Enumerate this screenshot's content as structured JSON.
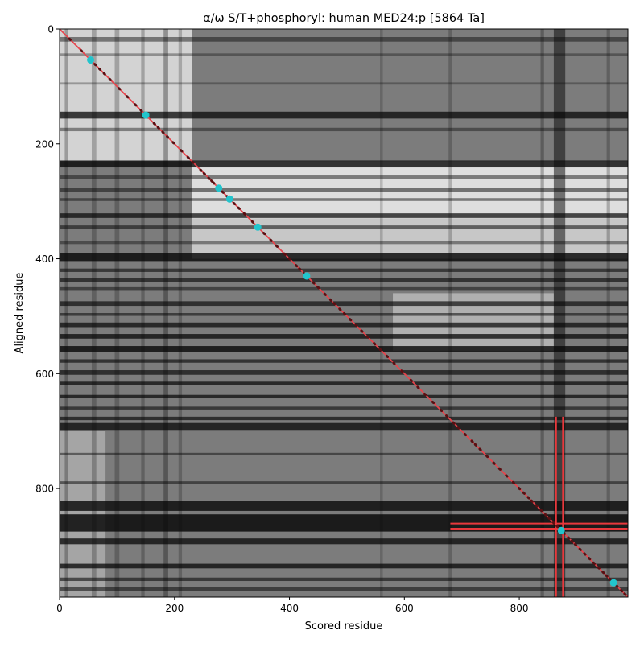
{
  "chart_data": {
    "type": "heatmap",
    "title": "α/ω S/T+phosphoryl: human MED24:p [5864 Ta]",
    "xlabel": "Scored residue",
    "ylabel": "Aligned residue",
    "xlim": [
      0,
      989
    ],
    "ylim": [
      989,
      0
    ],
    "xticks": [
      0,
      200,
      400,
      600,
      800
    ],
    "yticks": [
      0,
      200,
      400,
      600,
      800
    ],
    "grid": false,
    "colormap": "grayscale",
    "colors": {
      "diagonal": "#e8444c",
      "highlight": "#e8383c",
      "marker": "#22c4cc",
      "dot": "#5a0f12"
    },
    "dark_rows": [
      {
        "center": 18,
        "width": 8,
        "level": 0.55
      },
      {
        "center": 45,
        "width": 5,
        "level": 0.4
      },
      {
        "center": 95,
        "width": 4,
        "level": 0.35
      },
      {
        "center": 150,
        "width": 12,
        "level": 0.9
      },
      {
        "center": 175,
        "width": 6,
        "level": 0.5
      },
      {
        "center": 235,
        "width": 12,
        "level": 0.95
      },
      {
        "center": 258,
        "width": 6,
        "level": 0.55
      },
      {
        "center": 280,
        "width": 6,
        "level": 0.6
      },
      {
        "center": 297,
        "width": 5,
        "level": 0.55
      },
      {
        "center": 325,
        "width": 8,
        "level": 0.85
      },
      {
        "center": 345,
        "width": 6,
        "level": 0.65
      },
      {
        "center": 372,
        "width": 5,
        "level": 0.5
      },
      {
        "center": 397,
        "width": 14,
        "level": 0.98
      },
      {
        "center": 420,
        "width": 6,
        "level": 0.7
      },
      {
        "center": 437,
        "width": 6,
        "level": 0.75
      },
      {
        "center": 452,
        "width": 5,
        "level": 0.6
      },
      {
        "center": 478,
        "width": 8,
        "level": 0.8
      },
      {
        "center": 497,
        "width": 5,
        "level": 0.65
      },
      {
        "center": 515,
        "width": 8,
        "level": 0.85
      },
      {
        "center": 535,
        "width": 8,
        "level": 0.9
      },
      {
        "center": 557,
        "width": 10,
        "level": 0.95
      },
      {
        "center": 578,
        "width": 6,
        "level": 0.75
      },
      {
        "center": 598,
        "width": 8,
        "level": 0.8
      },
      {
        "center": 617,
        "width": 6,
        "level": 0.85
      },
      {
        "center": 640,
        "width": 6,
        "level": 0.85
      },
      {
        "center": 660,
        "width": 5,
        "level": 0.7
      },
      {
        "center": 678,
        "width": 6,
        "level": 0.8
      },
      {
        "center": 692,
        "width": 12,
        "level": 0.9
      },
      {
        "center": 740,
        "width": 4,
        "level": 0.55
      },
      {
        "center": 790,
        "width": 5,
        "level": 0.6
      },
      {
        "center": 830,
        "width": 18,
        "level": 0.95
      },
      {
        "center": 860,
        "width": 30,
        "level": 1.0
      },
      {
        "center": 892,
        "width": 10,
        "level": 0.9
      },
      {
        "center": 935,
        "width": 8,
        "level": 0.9
      },
      {
        "center": 958,
        "width": 6,
        "level": 0.7
      },
      {
        "center": 975,
        "width": 6,
        "level": 0.65
      }
    ],
    "dark_columns": [
      {
        "center": 12,
        "width": 6,
        "level": 0.5
      },
      {
        "center": 60,
        "width": 8,
        "level": 0.45
      },
      {
        "center": 100,
        "width": 8,
        "level": 0.45
      },
      {
        "center": 145,
        "width": 6,
        "level": 0.45
      },
      {
        "center": 185,
        "width": 8,
        "level": 0.6
      },
      {
        "center": 210,
        "width": 6,
        "level": 0.4
      },
      {
        "center": 560,
        "width": 5,
        "level": 0.35
      },
      {
        "center": 680,
        "width": 6,
        "level": 0.4
      },
      {
        "center": 840,
        "width": 6,
        "level": 0.5
      },
      {
        "center": 870,
        "width": 20,
        "level": 0.95
      },
      {
        "center": 955,
        "width": 6,
        "level": 0.45
      }
    ],
    "light_regions": [
      {
        "x": [
          0,
          230
        ],
        "y": [
          0,
          230
        ],
        "level": 0.15
      },
      {
        "x": [
          230,
          989
        ],
        "y": [
          230,
          330
        ],
        "level": 0.1
      },
      {
        "x": [
          230,
          989
        ],
        "y": [
          330,
          400
        ],
        "level": 0.2
      },
      {
        "x": [
          0,
          80
        ],
        "y": [
          700,
          989
        ],
        "level": 0.35
      },
      {
        "x": [
          580,
          860
        ],
        "y": [
          460,
          560
        ],
        "level": 0.3
      }
    ],
    "diagonal": [
      [
        0,
        0
      ],
      [
        989,
        989
      ]
    ],
    "highlighted_sites": [
      {
        "x": 54,
        "y": 54
      },
      {
        "x": 150,
        "y": 150
      },
      {
        "x": 277,
        "y": 277
      },
      {
        "x": 296,
        "y": 296
      },
      {
        "x": 345,
        "y": 345
      },
      {
        "x": 430,
        "y": 430
      },
      {
        "x": 873,
        "y": 873
      },
      {
        "x": 964,
        "y": 964
      }
    ],
    "diagonal_points": [
      18,
      38,
      62,
      70,
      78,
      88,
      104,
      118,
      132,
      142,
      165,
      172,
      180,
      188,
      198,
      212,
      224,
      232,
      246,
      252,
      260,
      265,
      268,
      284,
      292,
      304,
      312,
      322,
      336,
      356,
      368,
      378,
      392,
      400,
      412,
      418,
      426,
      442,
      450,
      462,
      472,
      478,
      488,
      496,
      506,
      516,
      526,
      536,
      548,
      558,
      570,
      582,
      596,
      612,
      624,
      636,
      650,
      664,
      674,
      686,
      694,
      706,
      718,
      724,
      732,
      744,
      756,
      766,
      778,
      790,
      800,
      808,
      816,
      822,
      830,
      838,
      846,
      852,
      860,
      866,
      878,
      886,
      892,
      898,
      906,
      914,
      922,
      930,
      938,
      946,
      952,
      958,
      970,
      978,
      984
    ],
    "crosshair": {
      "x_lines": [
        864,
        876
      ],
      "y_lines": [
        861,
        870
      ],
      "x_span": [
        680,
        989
      ],
      "y_span": [
        675,
        989
      ]
    }
  }
}
